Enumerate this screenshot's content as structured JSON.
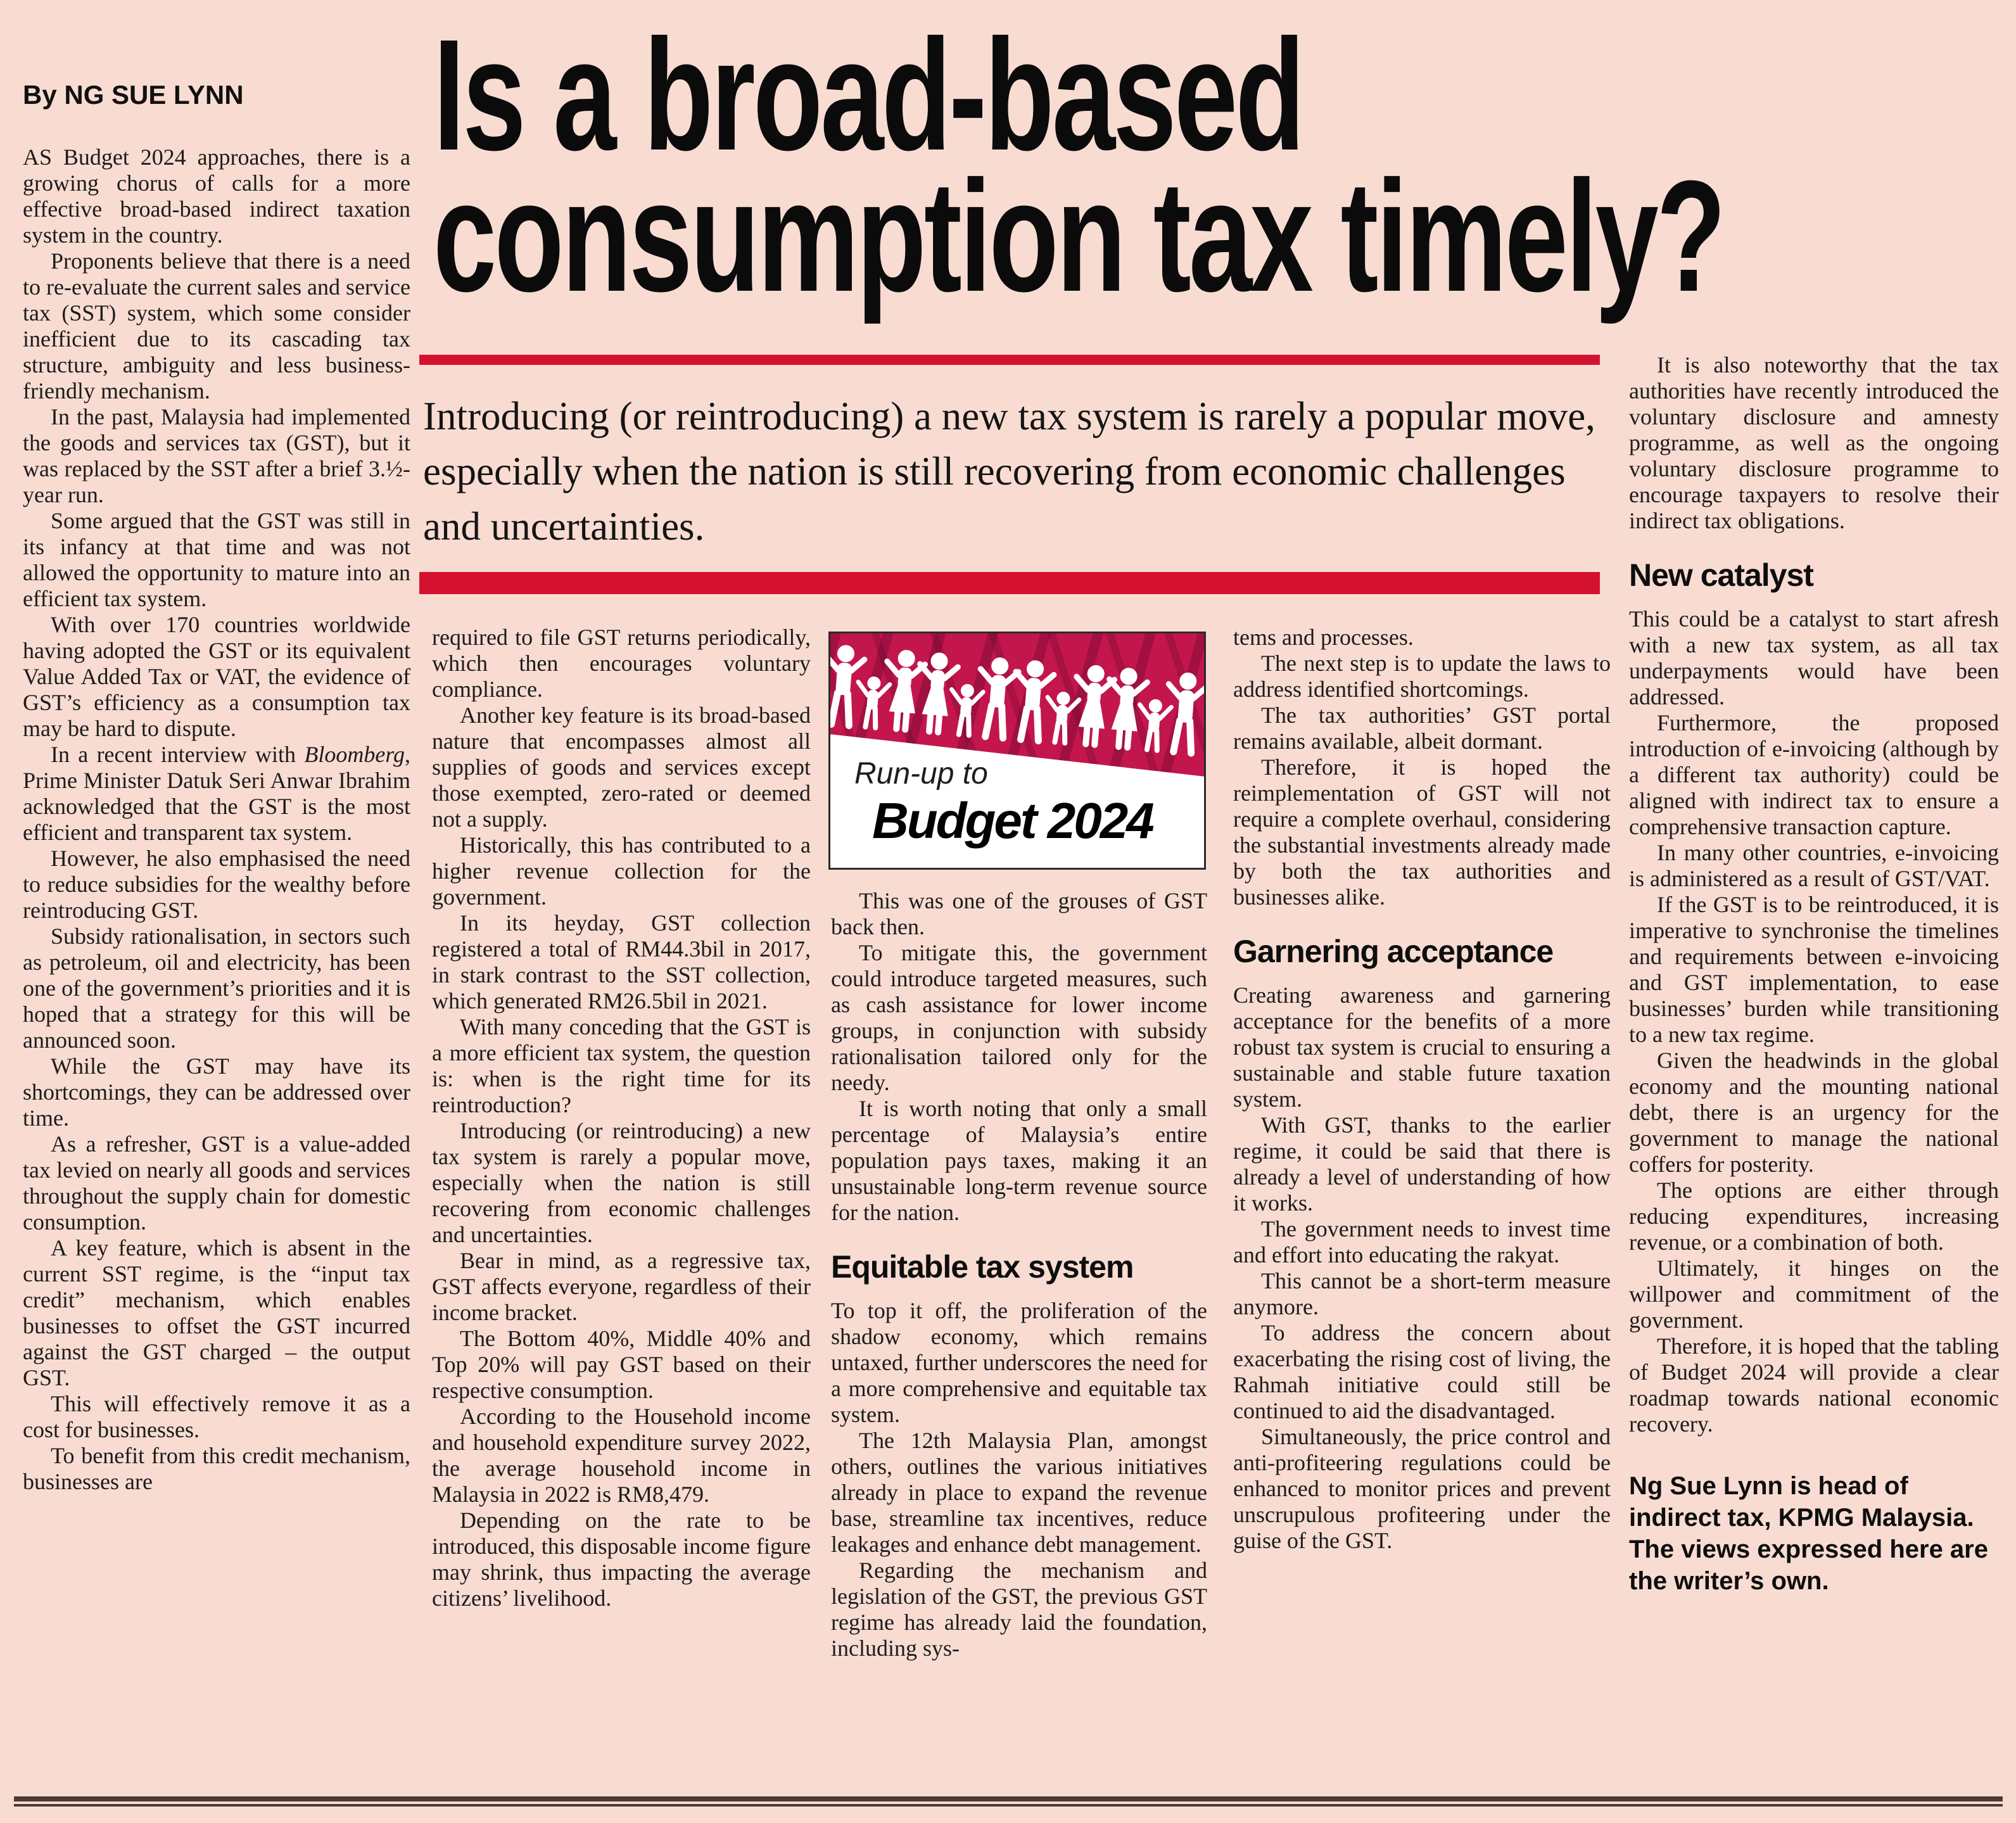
{
  "colors": {
    "background": "#f8dcd2",
    "accent_red": "#d41230",
    "graphic_magenta": "#c3164d",
    "text_ink": "#1b1b1b",
    "rule_brown": "#4c3a33"
  },
  "byline": "By NG SUE LYNN",
  "headline": {
    "line1": "Is a broad-based",
    "line2": "consumption tax timely?"
  },
  "standfirst": "Introducing (or reintroducing) a new tax system is rarely a popular move, especially when the nation is still recovering from economic challenges and uncertainties.",
  "graphic": {
    "kicker": "Run-up to",
    "title": "Budget 2024"
  },
  "columns": {
    "col1": [
      {
        "t": "p",
        "noindent": true,
        "x": "AS Budget 2024 approaches, there is a growing chorus of calls for a more effective broad-based indirect taxation system in the country."
      },
      {
        "t": "p",
        "x": "Proponents believe that there is a need to re-evaluate the current sales and service tax (SST) system, which some consider inefficient due to its cascading tax structure, ambiguity and less business-friendly mechanism."
      },
      {
        "t": "p",
        "x": "In the past, Malaysia had implemented the goods and services tax (GST), but it was replaced by the SST after a brief 3.½-year run."
      },
      {
        "t": "p",
        "x": "Some argued that the GST was still in its infancy at that time and was not allowed the opportunity to mature into an efficient tax system."
      },
      {
        "t": "p",
        "x": "With over 170 countries worldwide having adopted the GST or its equivalent Value Added Tax or VAT, the evidence of GST’s efficiency as a consumption tax may be hard to dispute."
      },
      {
        "t": "p",
        "x": "In a recent interview with <i>Bloomberg</i>, Prime Minister Datuk Seri Anwar Ibrahim acknowledged that the GST is the most efficient and transparent tax system."
      },
      {
        "t": "p",
        "x": "However, he also emphasised the need to reduce subsidies for the wealthy before reintroducing GST."
      },
      {
        "t": "p",
        "x": "Subsidy rationalisation, in sectors such as petroleum, oil and electricity, has been one of the government’s priorities and it is hoped that a strategy for this will be announced soon."
      },
      {
        "t": "p",
        "x": "While the GST may have its shortcomings, they can be addressed over time."
      },
      {
        "t": "p",
        "x": "As a refresher, GST is a value-added tax levied on nearly all goods and services throughout the supply chain for domestic consumption."
      },
      {
        "t": "p",
        "x": "A key feature, which is absent in the current SST regime, is the “input tax credit” mechanism, which enables businesses to offset the GST incurred against the GST charged – the output GST."
      },
      {
        "t": "p",
        "x": "This will effectively remove it as a cost for businesses."
      },
      {
        "t": "p",
        "x": "To benefit from this credit mechanism, businesses are"
      }
    ],
    "col2": [
      {
        "t": "p",
        "noindent": true,
        "x": "required to file GST returns periodically, which then encourages voluntary compliance."
      },
      {
        "t": "p",
        "x": "Another key feature is its broad-based nature that encompasses almost all supplies of goods and services except those exempted, zero-rated or deemed not a supply."
      },
      {
        "t": "p",
        "x": "Historically, this has contributed to a higher revenue collection for the government."
      },
      {
        "t": "p",
        "x": "In its heyday, GST collection registered a total of RM44.3bil in 2017, in stark contrast to the SST collection, which generated RM26.5bil in 2021."
      },
      {
        "t": "p",
        "x": "With many conceding that the GST is a more efficient tax system, the question is: when is the right time for its reintroduction?"
      },
      {
        "t": "p",
        "x": "Introducing (or reintroducing) a new tax system is rarely a popular move, especially when the nation is still recovering from economic challenges and uncertainties."
      },
      {
        "t": "p",
        "x": "Bear in mind, as a regressive tax, GST affects everyone, regardless of their income bracket."
      },
      {
        "t": "p",
        "x": "The Bottom 40%, Middle 40% and Top 20% will pay GST based on their respective consumption."
      },
      {
        "t": "p",
        "x": "According to the Household income and household expenditure survey 2022, the average household income in Malaysia in 2022 is RM8,479."
      },
      {
        "t": "p",
        "x": "Depending on the rate to be introduced, this disposable income figure may shrink, thus impacting the average citizens’ livelihood."
      }
    ],
    "col3": [
      {
        "t": "p",
        "x": "This was one of the grouses of GST back then."
      },
      {
        "t": "p",
        "x": "To mitigate this, the government could introduce targeted measures, such as cash assistance for lower income groups, in conjunction with subsidy rationalisation tailored only for the needy."
      },
      {
        "t": "p",
        "x": "It is worth noting that only a small percentage of Malaysia’s entire population pays taxes, making it an unsustainable long-term revenue source for the nation."
      },
      {
        "t": "h",
        "x": "Equitable tax system"
      },
      {
        "t": "p",
        "noindent": true,
        "x": "To top it off, the proliferation of the shadow economy, which remains untaxed, further underscores the need for a more comprehensive and equitable tax system."
      },
      {
        "t": "p",
        "x": "The 12th Malaysia Plan, amongst others, outlines the various initiatives already in place to expand the revenue base, streamline tax incentives, reduce leakages and enhance debt management."
      },
      {
        "t": "p",
        "x": "Regarding the mechanism and legislation of the GST, the previous GST regime has already laid the foundation, including sys-"
      }
    ],
    "col4": [
      {
        "t": "p",
        "noindent": true,
        "x": "tems and processes."
      },
      {
        "t": "p",
        "x": "The next step is to update the laws to address identified shortcomings."
      },
      {
        "t": "p",
        "x": "The tax authorities’ GST portal remains available, albeit dormant."
      },
      {
        "t": "p",
        "x": "Therefore, it is hoped the reimplementation of GST will not require a complete overhaul, considering the substantial investments already made by both the tax authorities and businesses alike."
      },
      {
        "t": "h",
        "x": "Garnering acceptance"
      },
      {
        "t": "p",
        "noindent": true,
        "x": "Creating awareness and garnering acceptance for the benefits of a more robust tax system is crucial to ensuring a sustainable and stable future taxation system."
      },
      {
        "t": "p",
        "x": "With GST, thanks to the earlier regime, it could be said that there is already a level of understanding of how it works."
      },
      {
        "t": "p",
        "x": "The government needs to invest time and effort into educating the rakyat."
      },
      {
        "t": "p",
        "x": "This cannot be a short-term measure anymore."
      },
      {
        "t": "p",
        "x": "To address the concern about exacerbating the rising cost of living, the Rahmah initiative could still be continued to aid the disadvantaged."
      },
      {
        "t": "p",
        "x": "Simultaneously, the price control and anti-profiteering regulations could be enhanced to monitor prices and prevent unscrupulous profiteering under the guise of the GST."
      }
    ],
    "col5": [
      {
        "t": "p",
        "x": "It is also noteworthy that the tax authorities have recently introduced the voluntary disclosure and amnesty programme, as well as the ongoing voluntary disclosure programme to encourage taxpayers to resolve their indirect tax obligations."
      },
      {
        "t": "h",
        "x": "New catalyst"
      },
      {
        "t": "p",
        "noindent": true,
        "x": "This could be a catalyst to start afresh with a new tax system, as all tax underpayments would have been addressed."
      },
      {
        "t": "p",
        "x": "Furthermore, the proposed introduction of e-invoicing (although by a different tax authority) could be aligned with indirect tax to ensure a comprehensive transaction capture."
      },
      {
        "t": "p",
        "x": "In many other countries, e-invoicing is administered as a result of GST/VAT."
      },
      {
        "t": "p",
        "x": "If the GST is to be reintroduced, it is imperative to synchronise the timelines and requirements between e-invoicing and GST implementation, to ease businesses’ burden while transitioning to a new tax regime."
      },
      {
        "t": "p",
        "x": "Given the headwinds in the global economy and the mounting national debt, there is an urgency for the government to manage the national coffers for posterity."
      },
      {
        "t": "p",
        "x": "The options are either through reducing expenditures, increasing revenue, or a combination of both."
      },
      {
        "t": "p",
        "x": "Ultimately, it hinges on the willpower and commitment of the government."
      },
      {
        "t": "p",
        "x": "Therefore, it is hoped that the tabling of Budget 2024 will provide a clear roadmap towards national economic recovery."
      },
      {
        "t": "foot",
        "x": "Ng Sue Lynn is head of indirect tax, KPMG Malaysia. The views expressed here are the writer’s own."
      }
    ]
  }
}
